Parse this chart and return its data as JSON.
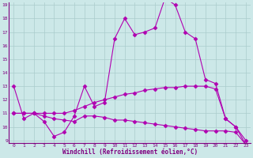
{
  "curve1_x": [
    0,
    1,
    2,
    3,
    4,
    5,
    6,
    7,
    8,
    9,
    10,
    11,
    12,
    13,
    14,
    15,
    16,
    17,
    18,
    19,
    20,
    21,
    22,
    23
  ],
  "curve1_y": [
    13.0,
    10.6,
    11.0,
    10.4,
    9.3,
    9.6,
    10.8,
    13.0,
    11.5,
    11.8,
    16.5,
    18.0,
    16.8,
    17.0,
    17.3,
    19.5,
    19.0,
    17.0,
    16.5,
    13.5,
    13.2,
    10.6,
    10.0,
    8.7
  ],
  "curve2_x": [
    0,
    1,
    2,
    3,
    4,
    5,
    6,
    7,
    8,
    9,
    10,
    11,
    12,
    13,
    14,
    15,
    16,
    17,
    18,
    19,
    20,
    21,
    22,
    23
  ],
  "curve2_y": [
    11.0,
    11.0,
    11.0,
    11.0,
    11.0,
    11.0,
    11.2,
    11.5,
    11.8,
    12.0,
    12.2,
    12.4,
    12.5,
    12.7,
    12.8,
    12.9,
    12.9,
    13.0,
    13.0,
    13.0,
    12.8,
    10.6,
    10.0,
    9.0
  ],
  "curve3_x": [
    0,
    1,
    2,
    3,
    4,
    5,
    6,
    7,
    8,
    9,
    10,
    11,
    12,
    13,
    14,
    15,
    16,
    17,
    18,
    19,
    20,
    21,
    22,
    23
  ],
  "curve3_y": [
    11.0,
    11.0,
    11.0,
    10.8,
    10.6,
    10.5,
    10.4,
    10.8,
    10.8,
    10.7,
    10.5,
    10.5,
    10.4,
    10.3,
    10.2,
    10.1,
    10.0,
    9.9,
    9.8,
    9.7,
    9.7,
    9.7,
    9.6,
    8.7
  ],
  "line_color": "#b000b0",
  "bg_color": "#cce8e8",
  "grid_color": "#aacccc",
  "xlabel": "Windchill (Refroidissement éolien,°C)",
  "xlabel_color": "#800080",
  "ylim": [
    9,
    19
  ],
  "xlim": [
    -0.5,
    23.5
  ],
  "yticks": [
    9,
    10,
    11,
    12,
    13,
    14,
    15,
    16,
    17,
    18,
    19
  ],
  "xticks": [
    0,
    1,
    2,
    3,
    4,
    5,
    6,
    7,
    8,
    9,
    10,
    11,
    12,
    13,
    14,
    15,
    16,
    17,
    18,
    19,
    20,
    21,
    22,
    23
  ],
  "marker": "D",
  "markersize": 2.5,
  "linewidth": 0.8
}
